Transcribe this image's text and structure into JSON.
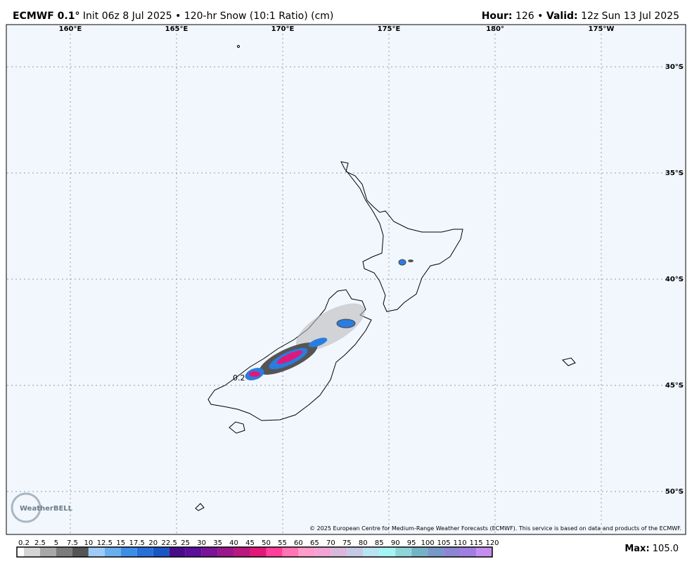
{
  "header": {
    "title": "ECMWF 0.1°",
    "subtitle": "Init 06z 8 Jul 2025 • 120-hr Snow (10:1 Ratio) (cm)",
    "hour_label": "Hour:",
    "hour": 126,
    "separator": "•",
    "valid_label": "Valid:",
    "valid": "12z Sun 13 Jul 2025"
  },
  "map": {
    "longitude_labels": [
      "160°E",
      "165°E",
      "170°E",
      "175°E",
      "180°",
      "175°W"
    ],
    "latitude_labels": [
      "30°S",
      "35°S",
      "40°S",
      "45°S",
      "50°S"
    ],
    "annotation": "0.2",
    "logo": "WeatherBELL",
    "copyright": "© 2025 European Centre for Medium-Range Weather Forecasts (ECMWF). This service is based on data and products of the ECMWF."
  },
  "colorbar": {
    "labels": [
      0.2,
      2.5,
      5,
      7.5,
      10,
      12.5,
      15,
      17.5,
      20,
      22.5,
      25,
      30,
      35,
      40,
      45,
      50,
      55,
      60,
      65,
      70,
      75,
      80,
      85,
      90,
      95,
      100,
      105,
      110,
      115,
      120
    ],
    "colors": [
      "#ffffff",
      "#d4d4d4",
      "#a8a8a8",
      "#7c7c7c",
      "#555555",
      "#9ecbf5",
      "#6aaef0",
      "#3d8fe6",
      "#2870d8",
      "#1a56c4",
      "#4a0d8a",
      "#5c0f9a",
      "#7a1395",
      "#9a168c",
      "#b8187f",
      "#e0187a",
      "#ff3f9a",
      "#ff74b4",
      "#ff9ccb",
      "#f2a5d4",
      "#d9b8dc",
      "#c5c9e6",
      "#b7e3f2",
      "#a6f3f3",
      "#8fd4d8",
      "#74b3c4",
      "#7899c8",
      "#8c85d2",
      "#a07de0",
      "#c38ef0"
    ],
    "max_label": "Max:",
    "max_value": "105.0"
  }
}
